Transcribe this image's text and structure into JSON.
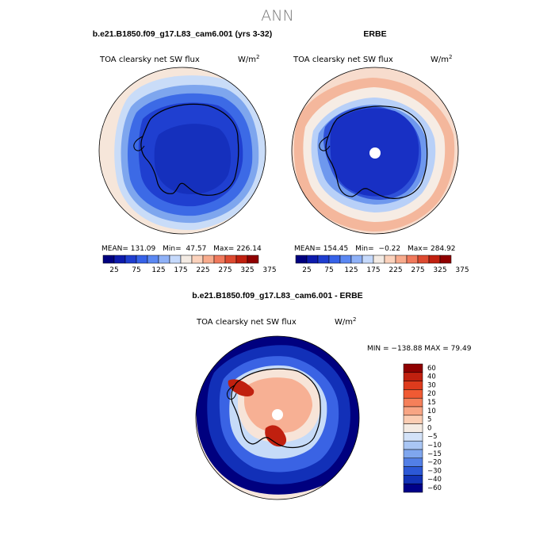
{
  "figure": {
    "title": "ANN"
  },
  "panel_model": {
    "case": "b.e21.B1850.f09_g17.L83_cam6.001 (yrs 3-32)",
    "variable": "TOA clearsky net SW flux",
    "units_base": "W/m",
    "units_exp": "2",
    "stats": {
      "mean_label": "MEAN=",
      "mean": "131.09",
      "min_label": "Min=",
      "min": "47.57",
      "max_label": "Max=",
      "max": "226.14"
    }
  },
  "panel_obs": {
    "case": "ERBE",
    "variable": "TOA clearsky net SW flux",
    "units_base": "W/m",
    "units_exp": "2",
    "stats": {
      "mean_label": "MEAN=",
      "mean": "154.45",
      "min_label": "Min=",
      "min": "−0.22",
      "max_label": "Max=",
      "max": "284.92"
    }
  },
  "panel_diff": {
    "case": "b.e21.B1850.f09_g17.L83_cam6.001 - ERBE",
    "variable": "TOA clearsky net SW flux",
    "units_base": "W/m",
    "units_exp": "2",
    "minmax": "MIN = −138.88 MAX =  79.49"
  },
  "colorbar_abs": {
    "colors": [
      "#00007f",
      "#0d1bac",
      "#1f3ecf",
      "#3662e8",
      "#5b88f2",
      "#8fb1f7",
      "#c5d9fb",
      "#f3ebe4",
      "#fbd2bc",
      "#f8ab8d",
      "#f0795c",
      "#dd4a30",
      "#c0200f",
      "#8f0000"
    ],
    "tick_labels": [
      "25",
      "75",
      "125",
      "175",
      "225",
      "275",
      "325",
      "375"
    ]
  },
  "colorbar_diff": {
    "colors": [
      "#8f0000",
      "#c0200f",
      "#dd3b1d",
      "#f05a33",
      "#f5805a",
      "#f8a584",
      "#fbcdb3",
      "#f4ebe3",
      "#d3e2f8",
      "#a9c6f4",
      "#7fa6ee",
      "#527fe6",
      "#2c58d6",
      "#1232b6",
      "#000088"
    ],
    "tick_labels": [
      "60",
      "40",
      "30",
      "20",
      "15",
      "10",
      "5",
      "0",
      "−5",
      "−10",
      "−15",
      "−20",
      "−30",
      "−40",
      "−60"
    ]
  }
}
